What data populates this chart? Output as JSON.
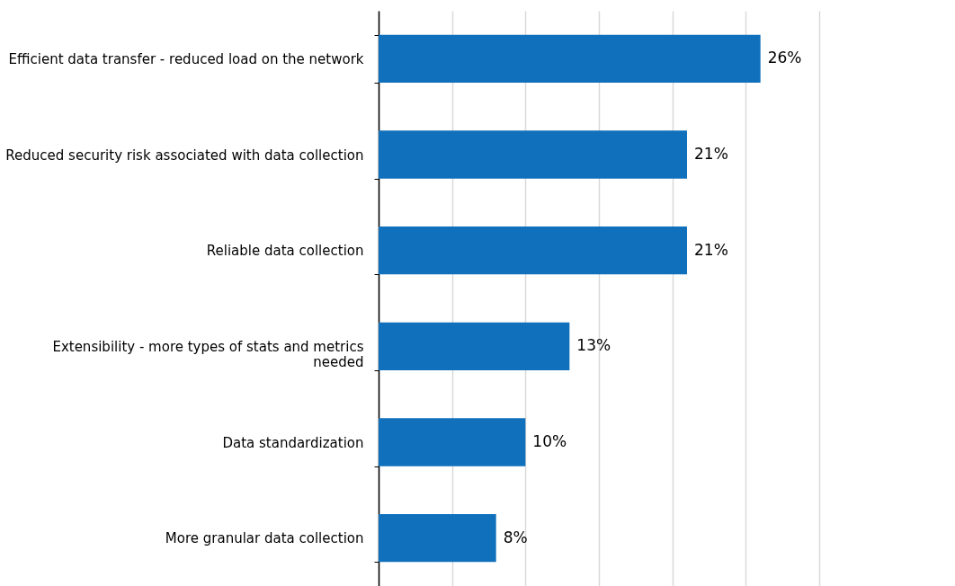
{
  "chart_data": {
    "type": "bar",
    "orientation": "horizontal",
    "categories": [
      "Efficient data transfer - reduced load on the network",
      "Reduced security risk associated with data collection",
      "Reliable data collection",
      "Extensibility - more types of stats and metrics needed",
      "Data standardization",
      "More granular data collection"
    ],
    "values": [
      26,
      21,
      21,
      13,
      10,
      8
    ],
    "value_labels": [
      "26%",
      "21%",
      "21%",
      "13%",
      "10%",
      "8%"
    ],
    "color": "#1170bb",
    "xlim": [
      0,
      30
    ],
    "xticks": [
      {
        "value": 0,
        "label": null
      },
      {
        "value": 5,
        "label": null
      },
      {
        "value": 10,
        "label": null
      },
      {
        "value": 15,
        "label": null
      },
      {
        "value": 20,
        "label": null
      },
      {
        "value": 25,
        "label": null
      },
      {
        "value": 30,
        "label": null
      }
    ],
    "tick_labels": "y",
    "grid": "x"
  }
}
